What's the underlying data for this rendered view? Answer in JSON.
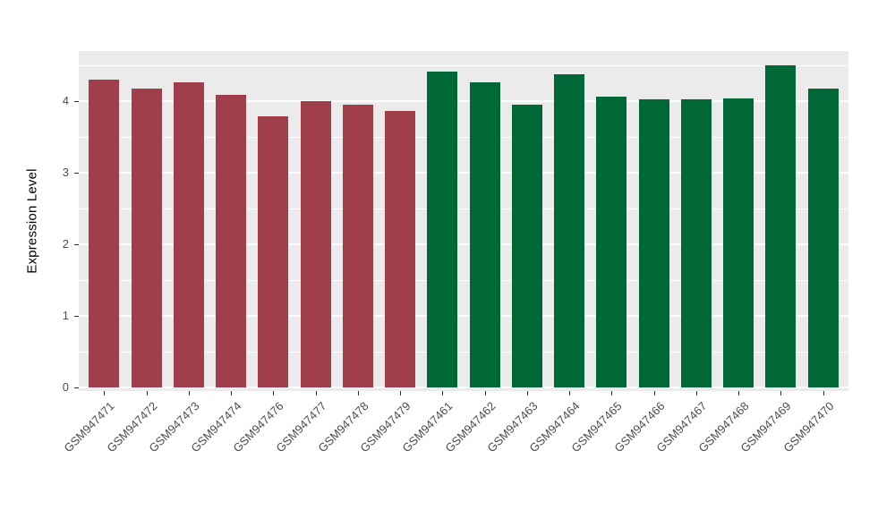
{
  "chart_data": {
    "type": "bar",
    "title": "",
    "xlabel": "",
    "ylabel": "Expression Level",
    "ylim": [
      0,
      4.7
    ],
    "yticks": [
      0,
      1,
      2,
      3,
      4
    ],
    "yticks_minor": [
      0.5,
      1.5,
      2.5,
      3.5,
      4.5
    ],
    "grid": true,
    "legend": "none",
    "categories": [
      "GSM947471",
      "GSM947472",
      "GSM947473",
      "GSM947474",
      "GSM947476",
      "GSM947477",
      "GSM947478",
      "GSM947479",
      "GSM947461",
      "GSM947462",
      "GSM947463",
      "GSM947464",
      "GSM947465",
      "GSM947466",
      "GSM947467",
      "GSM947468",
      "GSM947469",
      "GSM947470"
    ],
    "values": [
      4.3,
      4.17,
      4.26,
      4.09,
      3.79,
      4.0,
      3.95,
      3.86,
      4.41,
      4.26,
      3.95,
      4.38,
      4.06,
      4.03,
      4.03,
      4.04,
      4.5,
      4.17
    ],
    "groups": [
      "A",
      "A",
      "A",
      "A",
      "A",
      "A",
      "A",
      "A",
      "B",
      "B",
      "B",
      "B",
      "B",
      "B",
      "B",
      "B",
      "B",
      "B"
    ],
    "group_colors": {
      "A": "#A03F4B",
      "B": "#006837"
    }
  },
  "style": {
    "page_bg": "#FFFFFF",
    "panel_bg": "#EBEBEB",
    "grid_color": "#FFFFFF",
    "tick_color": "#333333",
    "tick_label_color": "#4D4D4D",
    "axis_title_color": "#000000"
  }
}
